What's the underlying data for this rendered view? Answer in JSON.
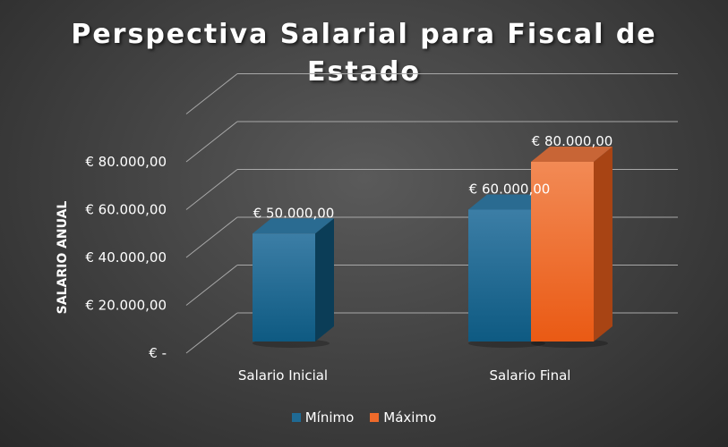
{
  "chart_data": {
    "type": "bar",
    "title": "Perspectiva Salarial para Fiscal de Estado",
    "xlabel": "",
    "ylabel": "SALARIO ANUAL",
    "categories": [
      "Salario Inicial",
      "Salario Final"
    ],
    "series": [
      {
        "name": "Mínimo",
        "values": [
          50000,
          60000
        ],
        "color": "#1f6a94"
      },
      {
        "name": "Máximo",
        "values": [
          null,
          80000
        ],
        "color": "#ee6a2a"
      }
    ],
    "data_labels": [
      [
        "€ 50.000,00",
        "€ 60.000,00"
      ],
      [
        null,
        "€ 80.000,00"
      ]
    ],
    "ylim": [
      0,
      100000
    ],
    "yticks": [
      0,
      20000,
      40000,
      60000,
      80000
    ],
    "ytick_labels": [
      "€ -",
      "€ 20.000,00",
      "€ 40.000,00",
      "€ 60.000,00",
      "€ 80.000,00"
    ],
    "grid": true,
    "legend_position": "bottom",
    "style": "3d-clustered-column"
  },
  "legend": {
    "items": [
      {
        "label": "Mínimo",
        "color": "#1f6a94"
      },
      {
        "label": "Máximo",
        "color": "#ee6a2a"
      }
    ]
  }
}
